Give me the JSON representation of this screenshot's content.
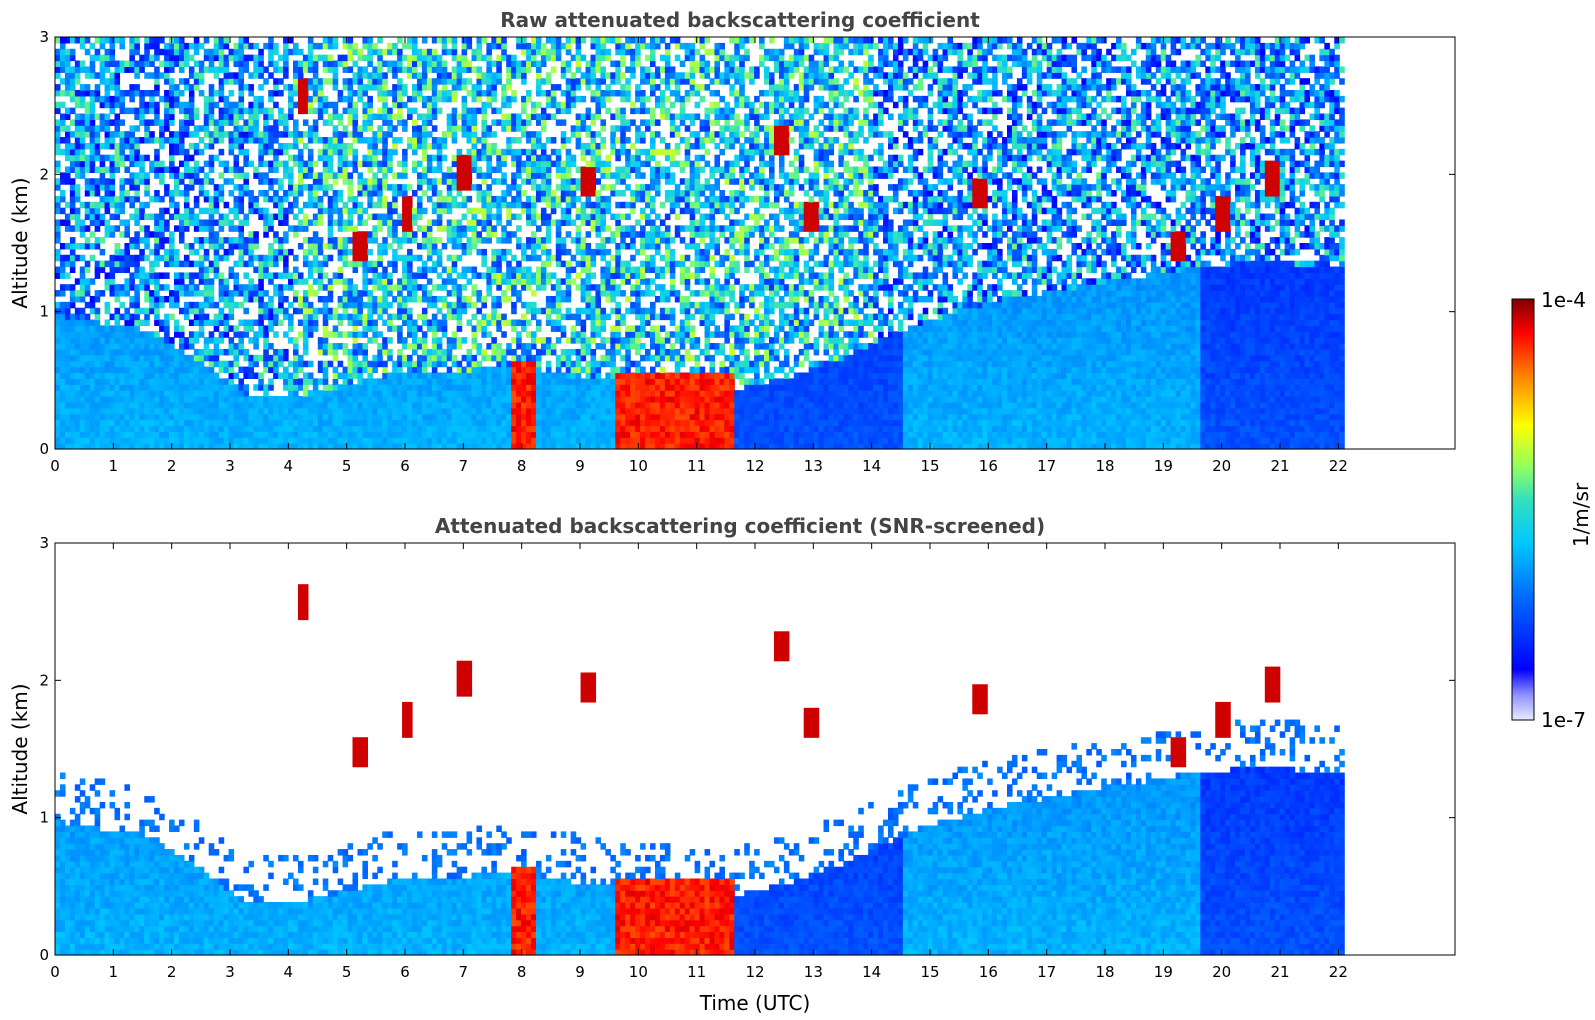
{
  "chart_data": [
    {
      "type": "heatmap",
      "title": "Raw attenuated backscattering coefficient",
      "xlabel": "",
      "ylabel": "Altitude (km)",
      "xlim": [
        0,
        24
      ],
      "ylim": [
        0,
        3
      ],
      "x_ticks": [
        0,
        1,
        2,
        3,
        4,
        5,
        6,
        7,
        8,
        9,
        10,
        11,
        12,
        13,
        14,
        15,
        16,
        17,
        18,
        19,
        20,
        21,
        22
      ],
      "y_ticks": [
        0,
        1,
        2,
        3
      ],
      "data_end_hour": 22.1,
      "screened": false
    },
    {
      "type": "heatmap",
      "title": "Attenuated backscattering coefficient (SNR-screened)",
      "xlabel": "Time (UTC)",
      "ylabel": "Altitude (km)",
      "xlim": [
        0,
        24
      ],
      "ylim": [
        0,
        3
      ],
      "x_ticks": [
        0,
        1,
        2,
        3,
        4,
        5,
        6,
        7,
        8,
        9,
        10,
        11,
        12,
        13,
        14,
        15,
        16,
        17,
        18,
        19,
        20,
        21,
        22
      ],
      "y_ticks": [
        0,
        1,
        2,
        3
      ],
      "data_end_hour": 22.1,
      "screened": true
    }
  ],
  "colorbar": {
    "label": "1/m/sr",
    "max_label": "1e-4",
    "min_label": "1e-7",
    "scale": "log",
    "range": [
      1e-07,
      0.0001
    ]
  },
  "colors": {
    "title": "#444444",
    "axis": "#000000",
    "background": "#ffffff"
  },
  "features": {
    "boundary_layer_top_km": [
      [
        0,
        0.95
      ],
      [
        1.5,
        0.85
      ],
      [
        2.5,
        0.6
      ],
      [
        3.2,
        0.35
      ],
      [
        4,
        0.35
      ],
      [
        5,
        0.45
      ],
      [
        6,
        0.55
      ],
      [
        7,
        0.55
      ],
      [
        7.8,
        0.6
      ],
      [
        9,
        0.5
      ],
      [
        11.5,
        0.4
      ],
      [
        12.5,
        0.5
      ],
      [
        13.5,
        0.65
      ],
      [
        14.5,
        0.85
      ],
      [
        16,
        1.05
      ],
      [
        18,
        1.2
      ],
      [
        19.5,
        1.3
      ],
      [
        20.5,
        1.35
      ],
      [
        22.1,
        1.3
      ]
    ],
    "dense_aerosol_layers": [
      {
        "x_start": 9.6,
        "x_end": 11.6,
        "top_km": 0.55
      },
      {
        "x_start": 7.8,
        "x_end": 8.2,
        "top_km": 0.6
      }
    ],
    "cloud_fragments_hours": [
      4.2,
      5.2,
      6.0,
      7.0,
      9.1,
      12.4,
      12.9,
      15.8,
      19.2,
      20.0,
      20.8
    ]
  }
}
